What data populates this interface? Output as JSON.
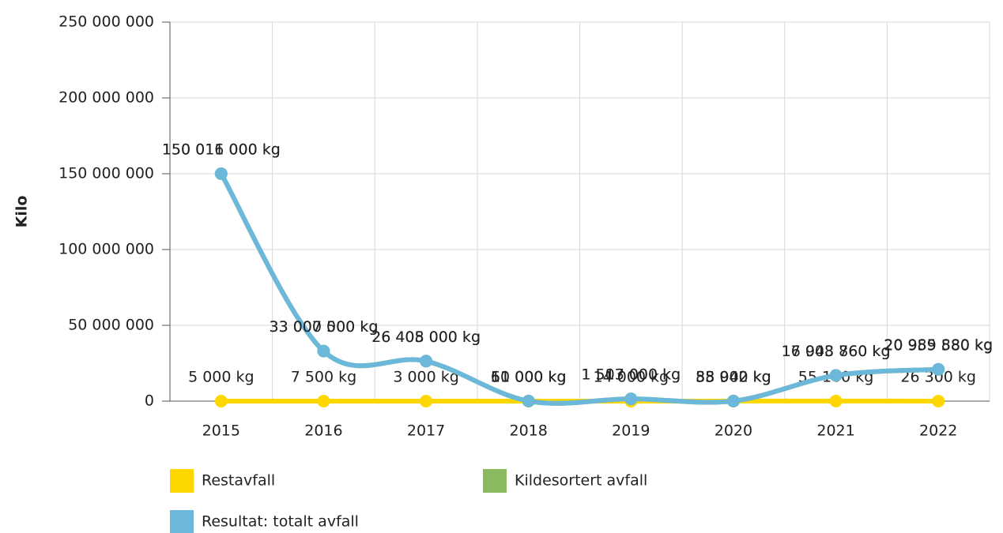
{
  "chart_data": {
    "type": "line",
    "y_label": "Kilo",
    "categories": [
      "2015",
      "2016",
      "2017",
      "2018",
      "2019",
      "2020",
      "2021",
      "2022"
    ],
    "series": [
      {
        "name": "Restavfall",
        "color": "#ffd700",
        "values": [
          5000,
          7500,
          3000,
          11000,
          14000,
          33942,
          55100,
          26300
        ],
        "value_labels": [
          "5 000 kg",
          "7 500 kg",
          "3 000 kg",
          "11 000 kg",
          "14 000 kg",
          "33 942 kg",
          "55 100 kg",
          "26 300 kg"
        ]
      },
      {
        "name": "Kildesortert avfall",
        "color": "#8bba5e",
        "values": [
          150011000,
          33000000,
          26405000,
          50000,
          1503000,
          55000,
          16948760,
          20959580
        ],
        "value_labels": [
          "150 011 000 kg",
          "33 000 000 kg",
          "26 405 000 kg",
          "50 000 kg",
          "1 503 000 kg",
          "55 000 kg",
          "16 948 760 kg",
          "20 959 580 kg"
        ]
      },
      {
        "name": "Resultat: totalt avfall",
        "color": "#6bb8da",
        "values": [
          150016000,
          33007500,
          26408000,
          61000,
          1517000,
          88942,
          17003860,
          20985880
        ],
        "value_labels": [
          "150 016 000 kg",
          "33 007 500 kg",
          "26 408 000 kg",
          "61 000 kg",
          "1 517 000 kg",
          "88 942 kg",
          "17 003 860 kg",
          "20 985 880 kg"
        ]
      }
    ],
    "ylim": [
      0,
      250000000
    ],
    "yticks": [
      0,
      {
        "value": 50000000,
        "label": "50 000 000"
      },
      {
        "value": 100000000,
        "label": "100 000 000"
      },
      {
        "value": 150000000,
        "label": "150 000 000"
      },
      {
        "value": 200000000,
        "label": "200 000 000"
      },
      {
        "value": 250000000,
        "label": "250 000 000"
      }
    ],
    "grid": true
  }
}
